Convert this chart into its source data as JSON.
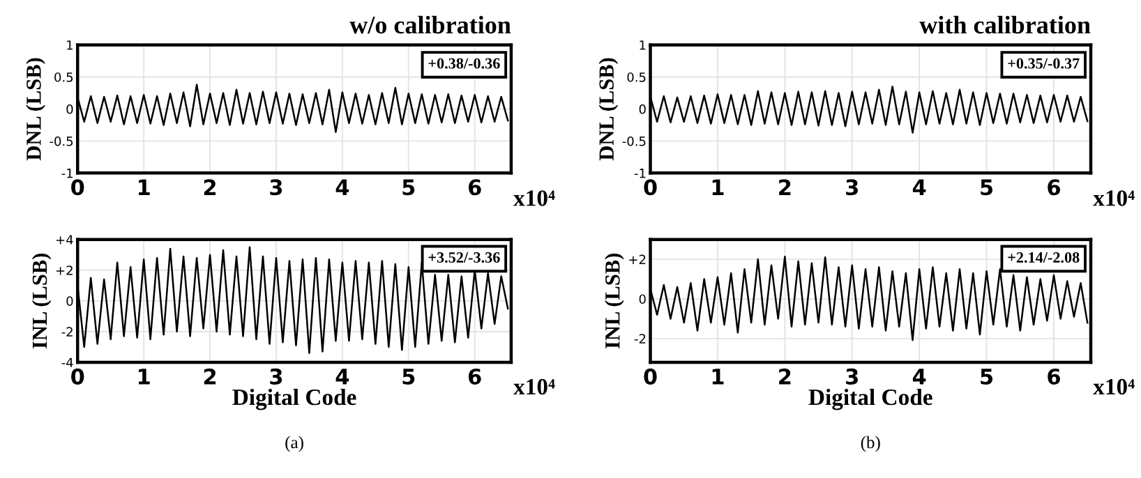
{
  "chart_data": [
    {
      "type": "line",
      "title": "w/o calibration",
      "ylabel": "DNL (LSB)",
      "x": [
        0.0,
        0.1,
        0.2,
        0.3,
        0.4,
        0.5,
        0.6,
        0.7,
        0.8,
        0.9,
        1.0,
        1.1,
        1.2,
        1.3,
        1.4,
        1.5,
        1.6,
        1.7,
        1.8,
        1.9,
        2.0,
        2.1,
        2.2,
        2.3,
        2.4,
        2.5,
        2.6,
        2.7,
        2.8,
        2.9,
        3.0,
        3.1,
        3.2,
        3.3,
        3.4,
        3.5,
        3.6,
        3.7,
        3.8,
        3.9,
        4.0,
        4.1,
        4.2,
        4.3,
        4.4,
        4.5,
        4.6,
        4.7,
        4.8,
        4.9,
        5.0,
        5.1,
        5.2,
        5.3,
        5.4,
        5.5,
        5.6,
        5.7,
        5.8,
        5.9,
        6.0,
        6.1,
        6.2,
        6.3,
        6.4,
        6.5
      ],
      "series": [
        {
          "color": "#000000",
          "values": [
            0.18,
            -0.2,
            0.2,
            -0.22,
            0.19,
            -0.2,
            0.21,
            -0.24,
            0.2,
            -0.22,
            0.22,
            -0.23,
            0.2,
            -0.25,
            0.24,
            -0.22,
            0.26,
            -0.27,
            0.38,
            -0.24,
            0.24,
            -0.22,
            0.25,
            -0.25,
            0.3,
            -0.23,
            0.25,
            -0.24,
            0.27,
            -0.22,
            0.26,
            -0.23,
            0.24,
            -0.25,
            0.23,
            -0.22,
            0.25,
            -0.24,
            0.3,
            -0.36,
            0.26,
            -0.22,
            0.24,
            -0.23,
            0.22,
            -0.24,
            0.25,
            -0.22,
            0.33,
            -0.24,
            0.24,
            -0.22,
            0.23,
            -0.23,
            0.22,
            -0.21,
            0.23,
            -0.22,
            0.21,
            -0.2,
            0.22,
            -0.21,
            0.2,
            -0.2,
            0.19,
            -0.18
          ]
        }
      ],
      "xlim": [
        0,
        6.55
      ],
      "xticks": [
        0,
        1,
        2,
        3,
        4,
        5,
        6
      ],
      "ylim": [
        -1,
        1
      ],
      "yticks": [
        -1,
        -0.5,
        0,
        0.5,
        1
      ],
      "annotations": [
        "+0.38/-0.36",
        "x10⁴"
      ],
      "grid": true,
      "marker": "none",
      "line_style": "solid"
    },
    {
      "type": "line",
      "title": "with calibration",
      "ylabel": "DNL (LSB)",
      "x": [
        0.0,
        0.1,
        0.2,
        0.3,
        0.4,
        0.5,
        0.6,
        0.7,
        0.8,
        0.9,
        1.0,
        1.1,
        1.2,
        1.3,
        1.4,
        1.5,
        1.6,
        1.7,
        1.8,
        1.9,
        2.0,
        2.1,
        2.2,
        2.3,
        2.4,
        2.5,
        2.6,
        2.7,
        2.8,
        2.9,
        3.0,
        3.1,
        3.2,
        3.3,
        3.4,
        3.5,
        3.6,
        3.7,
        3.8,
        3.9,
        4.0,
        4.1,
        4.2,
        4.3,
        4.4,
        4.5,
        4.6,
        4.7,
        4.8,
        4.9,
        5.0,
        5.1,
        5.2,
        5.3,
        5.4,
        5.5,
        5.6,
        5.7,
        5.8,
        5.9,
        6.0,
        6.1,
        6.2,
        6.3,
        6.4,
        6.5
      ],
      "series": [
        {
          "color": "#000000",
          "values": [
            0.19,
            -0.2,
            0.2,
            -0.21,
            0.18,
            -0.2,
            0.2,
            -0.22,
            0.21,
            -0.23,
            0.23,
            -0.22,
            0.22,
            -0.24,
            0.22,
            -0.25,
            0.28,
            -0.23,
            0.26,
            -0.24,
            0.25,
            -0.25,
            0.27,
            -0.24,
            0.26,
            -0.26,
            0.28,
            -0.25,
            0.25,
            -0.27,
            0.27,
            -0.24,
            0.26,
            -0.23,
            0.3,
            -0.25,
            0.35,
            -0.24,
            0.27,
            -0.37,
            0.26,
            -0.24,
            0.28,
            -0.23,
            0.25,
            -0.24,
            0.3,
            -0.23,
            0.26,
            -0.25,
            0.25,
            -0.22,
            0.24,
            -0.23,
            0.24,
            -0.21,
            0.22,
            -0.22,
            0.21,
            -0.21,
            0.22,
            -0.2,
            0.21,
            -0.2,
            0.19,
            -0.19
          ]
        }
      ],
      "xlim": [
        0,
        6.55
      ],
      "xticks": [
        0,
        1,
        2,
        3,
        4,
        5,
        6
      ],
      "ylim": [
        -1,
        1
      ],
      "yticks": [
        -1,
        -0.5,
        0,
        0.5,
        1
      ],
      "annotations": [
        "+0.35/-0.37",
        "x10⁴"
      ],
      "grid": true,
      "marker": "none",
      "line_style": "solid"
    },
    {
      "type": "line",
      "ylabel": "INL (LSB)",
      "xlabel": "Digital Code",
      "x": [
        0.0,
        0.1,
        0.2,
        0.3,
        0.4,
        0.5,
        0.6,
        0.7,
        0.8,
        0.9,
        1.0,
        1.1,
        1.2,
        1.3,
        1.4,
        1.5,
        1.6,
        1.7,
        1.8,
        1.9,
        2.0,
        2.1,
        2.2,
        2.3,
        2.4,
        2.5,
        2.6,
        2.7,
        2.8,
        2.9,
        3.0,
        3.1,
        3.2,
        3.3,
        3.4,
        3.5,
        3.6,
        3.7,
        3.8,
        3.9,
        4.0,
        4.1,
        4.2,
        4.3,
        4.4,
        4.5,
        4.6,
        4.7,
        4.8,
        4.9,
        5.0,
        5.1,
        5.2,
        5.3,
        5.4,
        5.5,
        5.6,
        5.7,
        5.8,
        5.9,
        6.0,
        6.1,
        6.2,
        6.3,
        6.4,
        6.5
      ],
      "series": [
        {
          "color": "#000000",
          "values": [
            1.0,
            -3.0,
            1.5,
            -2.8,
            1.4,
            -2.5,
            2.5,
            -2.3,
            2.2,
            -2.4,
            2.7,
            -2.5,
            2.8,
            -2.2,
            3.4,
            -2.0,
            2.9,
            -2.3,
            2.8,
            -1.8,
            3.0,
            -2.0,
            3.3,
            -2.2,
            2.9,
            -2.3,
            3.5,
            -2.5,
            2.9,
            -2.8,
            2.8,
            -2.7,
            2.6,
            -2.9,
            2.7,
            -3.4,
            2.8,
            -3.3,
            2.7,
            -2.6,
            2.5,
            -2.6,
            2.6,
            -2.5,
            2.5,
            -2.8,
            2.6,
            -3.0,
            2.4,
            -3.2,
            2.2,
            -3.0,
            2.5,
            -2.8,
            1.7,
            -2.6,
            1.7,
            -2.7,
            1.6,
            -2.4,
            2.0,
            -1.8,
            1.8,
            -1.5,
            1.6,
            -0.5
          ]
        }
      ],
      "xlim": [
        0,
        6.55
      ],
      "xticks": [
        0,
        1,
        2,
        3,
        4,
        5,
        6
      ],
      "ylim": [
        -4,
        4
      ],
      "yticks": [
        {
          "value": -4,
          "label": "-4"
        },
        {
          "value": -2,
          "label": "-2"
        },
        0,
        {
          "value": 2,
          "label": "+2"
        },
        {
          "value": 4,
          "label": "+4"
        }
      ],
      "annotations": [
        "+3.52/-3.36",
        "x10⁴",
        "(a)"
      ],
      "grid": true,
      "marker": "none",
      "line_style": "solid"
    },
    {
      "type": "line",
      "ylabel": "INL (LSB)",
      "xlabel": "Digital Code",
      "x": [
        0.0,
        0.1,
        0.2,
        0.3,
        0.4,
        0.5,
        0.6,
        0.7,
        0.8,
        0.9,
        1.0,
        1.1,
        1.2,
        1.3,
        1.4,
        1.5,
        1.6,
        1.7,
        1.8,
        1.9,
        2.0,
        2.1,
        2.2,
        2.3,
        2.4,
        2.5,
        2.6,
        2.7,
        2.8,
        2.9,
        3.0,
        3.1,
        3.2,
        3.3,
        3.4,
        3.5,
        3.6,
        3.7,
        3.8,
        3.9,
        4.0,
        4.1,
        4.2,
        4.3,
        4.4,
        4.5,
        4.6,
        4.7,
        4.8,
        4.9,
        5.0,
        5.1,
        5.2,
        5.3,
        5.4,
        5.5,
        5.6,
        5.7,
        5.8,
        5.9,
        6.0,
        6.1,
        6.2,
        6.3,
        6.4,
        6.5
      ],
      "series": [
        {
          "color": "#000000",
          "values": [
            0.5,
            -0.8,
            0.7,
            -1.0,
            0.6,
            -1.2,
            0.8,
            -1.6,
            1.0,
            -1.2,
            1.1,
            -1.3,
            1.3,
            -1.7,
            1.5,
            -1.2,
            2.0,
            -1.3,
            1.7,
            -1.0,
            2.14,
            -1.4,
            1.9,
            -1.3,
            1.8,
            -1.2,
            2.1,
            -1.3,
            1.6,
            -1.4,
            1.7,
            -1.5,
            1.5,
            -1.4,
            1.6,
            -1.6,
            1.4,
            -1.4,
            1.3,
            -2.08,
            1.5,
            -1.5,
            1.6,
            -1.4,
            1.3,
            -1.6,
            1.5,
            -1.5,
            1.3,
            -1.8,
            1.4,
            -1.3,
            1.5,
            -1.4,
            1.2,
            -1.6,
            1.1,
            -1.3,
            1.0,
            -1.1,
            1.2,
            -1.0,
            0.9,
            -0.9,
            0.8,
            -1.2
          ]
        }
      ],
      "xlim": [
        0,
        6.55
      ],
      "xticks": [
        0,
        1,
        2,
        3,
        4,
        5,
        6
      ],
      "ylim": [
        -3.2,
        3
      ],
      "yticks": [
        {
          "value": -2,
          "label": "-2"
        },
        0,
        {
          "value": 2,
          "label": "+2"
        }
      ],
      "annotations": [
        "+2.14/-2.08",
        "x10⁴",
        "(b)"
      ],
      "grid": true,
      "marker": "none",
      "line_style": "solid"
    }
  ]
}
